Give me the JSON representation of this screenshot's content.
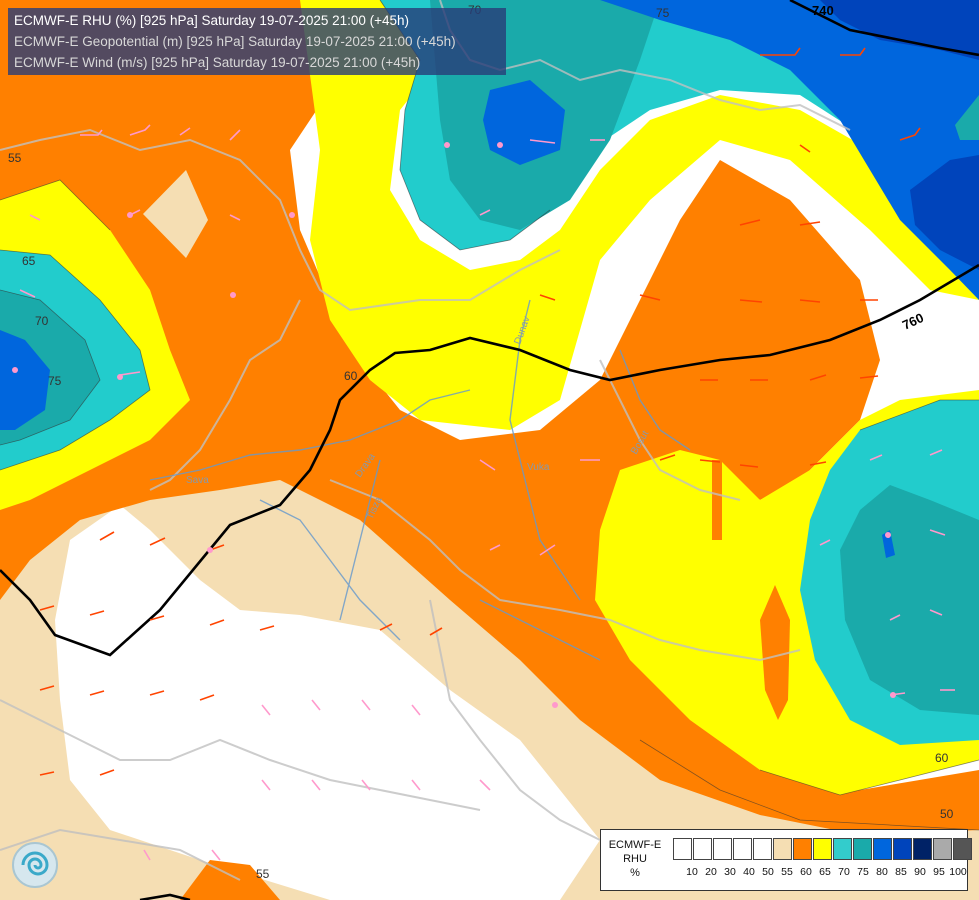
{
  "title_lines": [
    {
      "text": "ECMWF-E RHU (%) [925 hPa] Saturday 19-07-2025 21:00 (+45h)",
      "color": "#ffffff"
    },
    {
      "text": "ECMWF-E Geopotential (m) [925 hPa] Saturday 19-07-2025 21:00 (+45h)",
      "color": "#d8d8d8"
    },
    {
      "text": "ECMWF-E Wind (m/s) [925 hPa] Saturday 19-07-2025 21:00 (+45h)",
      "color": "#d8d8d8"
    }
  ],
  "legend": {
    "label_lines": [
      "ECMWF-E",
      "RHU",
      "%"
    ],
    "colors": [
      "#ffffff",
      "#ffffff",
      "#ffffff",
      "#ffffff",
      "#ffffff",
      "#f5deb3",
      "#ff8000",
      "#ffff00",
      "#33cccc",
      "#1aaaaa",
      "#0066dd",
      "#0044bb",
      "#002266",
      "#aaaaaa",
      "#555555"
    ],
    "ticks": [
      "10",
      "20",
      "30",
      "40",
      "50",
      "55",
      "60",
      "65",
      "70",
      "75",
      "80",
      "85",
      "90",
      "95",
      "100"
    ]
  },
  "contour_labels": [
    "740",
    "760",
    "55",
    "65",
    "70",
    "75",
    "60",
    "70",
    "75",
    "50",
    "60",
    "55"
  ],
  "river_labels": [
    "Dunav",
    "Sava",
    "Drava",
    "Tisza",
    "Vuka",
    "Bosut"
  ],
  "colors": {
    "white": "#ffffff",
    "beige": "#f5deb3",
    "orange": "#ff8000",
    "yellow": "#ffff00",
    "teal_light": "#22cccc",
    "teal_dark": "#1aaaaa",
    "blue": "#0066dd",
    "blue_dark": "#0044bb",
    "border": "#c0c0c0",
    "river": "#6699cc"
  },
  "icons": [
    "ecmwf-logo-icon"
  ]
}
